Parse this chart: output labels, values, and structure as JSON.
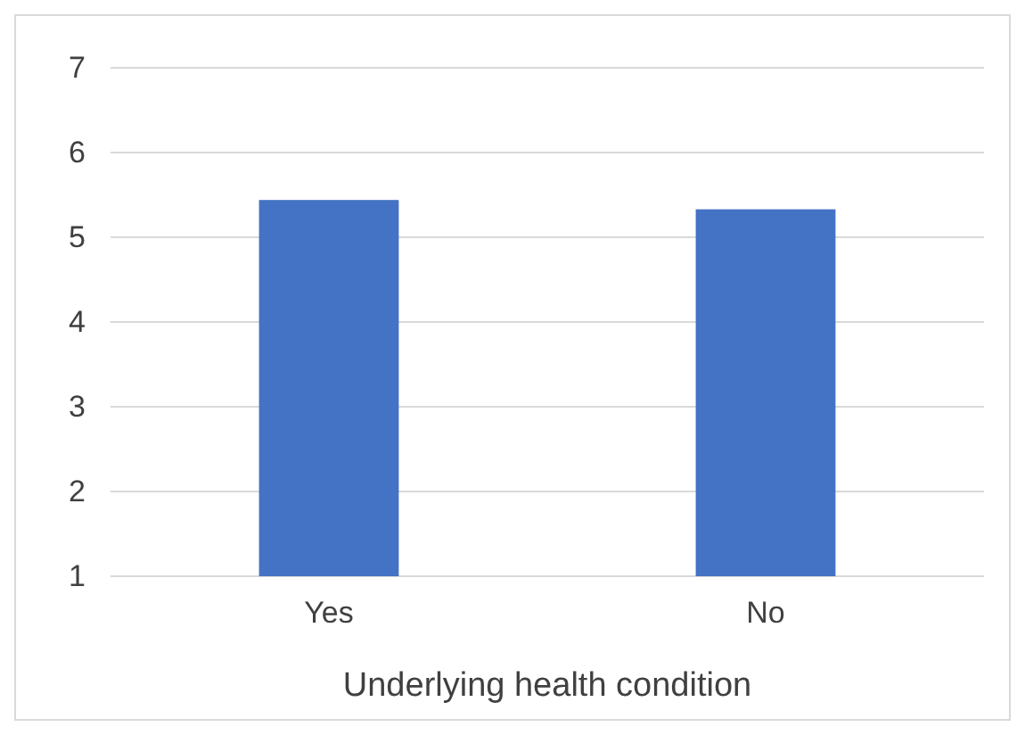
{
  "chart_data": {
    "type": "bar",
    "xlabel": "Underlying health condition",
    "categories": [
      "Yes",
      "No"
    ],
    "values": [
      5.44,
      5.33
    ],
    "color": "#4472c4",
    "ylim": [
      1,
      7
    ],
    "yticks": [
      1,
      2,
      3,
      4,
      5,
      6,
      7
    ],
    "grid": "y"
  }
}
